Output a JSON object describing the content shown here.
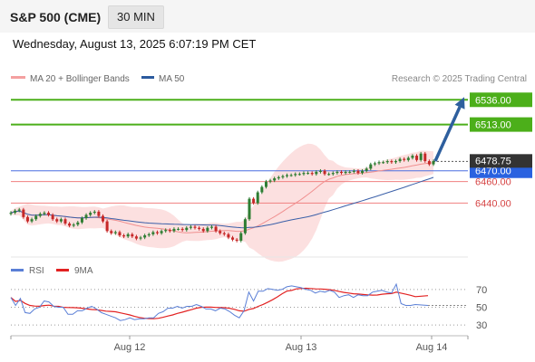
{
  "header": {
    "instrument": "S&P 500 (CME)",
    "timeframe": "30 MIN"
  },
  "timestamp": "Wednesday, August 13, 2025 6:07:19 PM CET",
  "copyright": "Research © 2025 Trading Central",
  "legend": [
    {
      "label": "MA 20 + Bollinger Bands",
      "color": "#f4a0a0"
    },
    {
      "label": "MA 50",
      "color": "#2b5a9e"
    }
  ],
  "rsi_legend": [
    {
      "label": "RSI",
      "color": "#5a7fd6"
    },
    {
      "label": "9MA",
      "color": "#e22222"
    }
  ],
  "colors": {
    "up": "#2e7d32",
    "down": "#c62828",
    "resistance": "#4caf1a",
    "support": "#f08080",
    "pivot": "#4a6fe0",
    "arrow": "#2e5f9e",
    "last_price": "#333333"
  },
  "chart_data": [
    {
      "type": "candlestick",
      "x_ticks": [
        "Aug 12",
        "Aug 13",
        "Aug 14"
      ],
      "ylim": [
        6405,
        6548
      ],
      "levels": [
        {
          "value": 6536.0,
          "label": "6536.00",
          "kind": "resistance"
        },
        {
          "value": 6513.0,
          "label": "6513.00",
          "kind": "resistance"
        },
        {
          "value": 6470.0,
          "label": "6470.00",
          "kind": "pivot"
        },
        {
          "value": 6460.0,
          "label": "6460.00",
          "kind": "support"
        },
        {
          "value": 6440.0,
          "label": "6440.00",
          "kind": "support"
        }
      ],
      "last_price": {
        "value": 6478.75,
        "label": "6478.75"
      },
      "arrow": {
        "from": 6479,
        "to": 6536
      },
      "close": [
        6431,
        6433,
        6434,
        6427,
        6423,
        6425,
        6428,
        6430,
        6431,
        6429,
        6425,
        6423,
        6425,
        6421,
        6419,
        6420,
        6422,
        6426,
        6429,
        6431,
        6432,
        6428,
        6423,
        6414,
        6412,
        6413,
        6410,
        6409,
        6411,
        6409,
        6407,
        6408,
        6410,
        6411,
        6413,
        6412,
        6414,
        6415,
        6414,
        6416,
        6416,
        6415,
        6417,
        6418,
        6417,
        6416,
        6414,
        6417,
        6418,
        6414,
        6412,
        6411,
        6408,
        6406,
        6405,
        6412,
        6425,
        6444,
        6440,
        6450,
        6455,
        6460,
        6461,
        6463,
        6464,
        6465,
        6466,
        6466,
        6467,
        6467,
        6468,
        6468,
        6467,
        6469,
        6470,
        6467,
        6467,
        6468,
        6469,
        6468,
        6469,
        6469,
        6470,
        6468,
        6470,
        6472,
        6476,
        6477,
        6478,
        6478,
        6479,
        6478,
        6479,
        6481,
        6480,
        6482,
        6484,
        6480,
        6486,
        6479,
        6476,
        6479
      ]
    },
    {
      "type": "line",
      "name": "RSI",
      "ylim": [
        25,
        78
      ],
      "ticks": [
        70,
        50,
        30
      ],
      "rsi": [
        61,
        52,
        60,
        44,
        43,
        48,
        50,
        57,
        56,
        51,
        50,
        50,
        42,
        42,
        46,
        46,
        49,
        51,
        48,
        44,
        42,
        40,
        38,
        35,
        36,
        38,
        36,
        37,
        37,
        38,
        38,
        43,
        45,
        49,
        49,
        51,
        49,
        51,
        51,
        53,
        51,
        48,
        48,
        46,
        49,
        48,
        45,
        41,
        38,
        46,
        67,
        57,
        68,
        68,
        71,
        70,
        69,
        70,
        73,
        74,
        73,
        72,
        70,
        69,
        66,
        68,
        67,
        69,
        67,
        61,
        63,
        64,
        61,
        64,
        63,
        63,
        67,
        68,
        69,
        67,
        66,
        76,
        54,
        52,
        52,
        53
      ]
    }
  ]
}
